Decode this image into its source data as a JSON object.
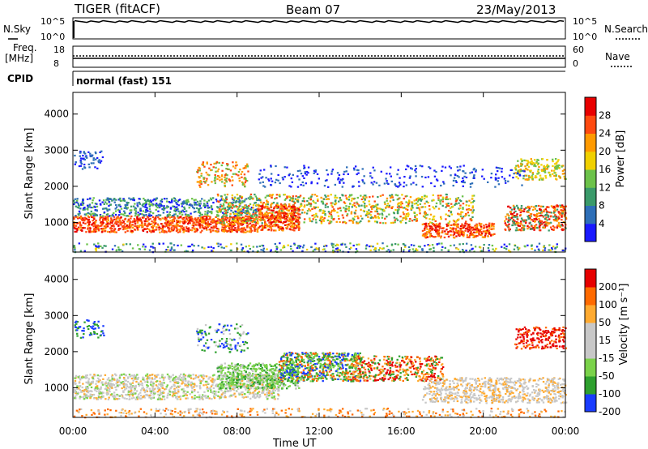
{
  "header": {
    "station": "TIGER (fitACF)",
    "beam": "Beam 07",
    "date": "23/May/2013"
  },
  "nsky_panel": {
    "left_label": "N.Sky",
    "left_ticks": [
      "10^5",
      "10^0"
    ],
    "right_label": "N.Search",
    "right_ticks": [
      "10^5",
      "10^0"
    ]
  },
  "freq_panel": {
    "left_label_line1": "Freq.",
    "left_label_line2": "[MHz]",
    "left_ticks": [
      "18",
      "8"
    ],
    "right_label": "Nave",
    "right_ticks": [
      "60",
      "0"
    ]
  },
  "cpid_panel": {
    "label": "CPID",
    "text": "normal (fast) 151"
  },
  "time_axis": {
    "label": "Time UT",
    "ticks": [
      "00:00",
      "04:00",
      "08:00",
      "12:00",
      "16:00",
      "20:00",
      "00:00"
    ]
  },
  "chart_data": [
    {
      "type": "heatmap",
      "title": "",
      "xlabel": "Time UT",
      "ylabel": "Slant Range [km]",
      "xlim": [
        0,
        24
      ],
      "ylim": [
        180,
        4600
      ],
      "yticks": [
        1000,
        2000,
        3000,
        4000
      ],
      "colorbar_label": "Power [dB]",
      "colorbar_ticks": [
        "4",
        "8",
        "12",
        "16",
        "20",
        "24",
        "28"
      ],
      "colorbar_range": [
        0,
        30
      ],
      "colors": [
        "#1a1aff",
        "#2e6fb8",
        "#3a9a6a",
        "#6cc24a",
        "#f0d000",
        "#ff9a00",
        "#ff4a10",
        "#e80000"
      ]
    },
    {
      "type": "heatmap",
      "title": "",
      "xlabel": "Time UT",
      "ylabel": "Slant Range [km]",
      "xlim": [
        0,
        24
      ],
      "ylim": [
        180,
        4600
      ],
      "yticks": [
        1000,
        2000,
        3000,
        4000
      ],
      "colorbar_label": "Velocity [m s⁻¹]",
      "colorbar_ticks": [
        "200",
        "100",
        "50",
        "15",
        "-15",
        "-50",
        "-100",
        "-200"
      ],
      "colorbar_range": [
        -250,
        250
      ],
      "colors": [
        "#e60000",
        "#ff6a00",
        "#ffaa30",
        "#c8c8c8",
        "#c8c8c8",
        "#7ad24a",
        "#2ea02e",
        "#1a3cff"
      ]
    }
  ]
}
